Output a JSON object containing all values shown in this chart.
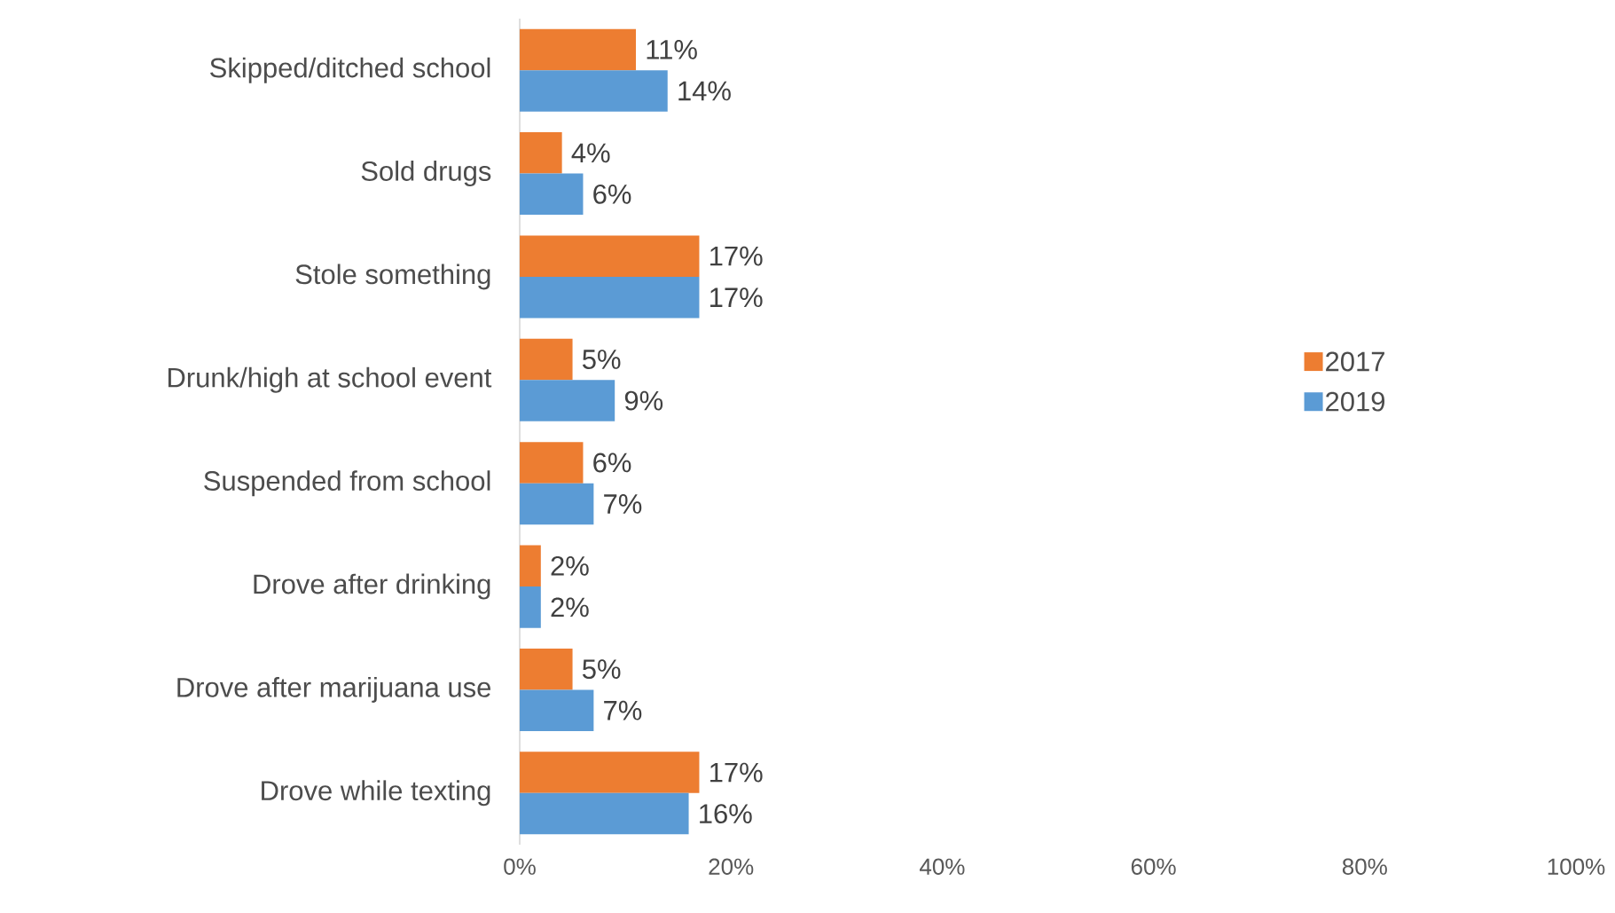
{
  "chart_data": {
    "type": "bar",
    "orientation": "horizontal",
    "categories": [
      "Skipped/ditched school",
      "Sold drugs",
      "Stole something",
      "Drunk/high at school event",
      "Suspended from school",
      "Drove after drinking",
      "Drove after marijuana use",
      "Drove while texting"
    ],
    "series": [
      {
        "name": "2017",
        "color": "#ed7d31",
        "values": [
          11,
          4,
          17,
          5,
          6,
          2,
          5,
          17
        ],
        "value_labels": [
          "11%",
          "4%",
          "17%",
          "5%",
          "6%",
          "2%",
          "5%",
          "17%"
        ]
      },
      {
        "name": "2019",
        "color": "#5b9bd5",
        "values": [
          14,
          6,
          17,
          9,
          7,
          2,
          7,
          16
        ],
        "value_labels": [
          "14%",
          "6%",
          "17%",
          "9%",
          "7%",
          "2%",
          "7%",
          "16%"
        ]
      }
    ],
    "xlim": [
      0,
      100
    ],
    "xticks": [
      {
        "value": 0,
        "label": "0%"
      },
      {
        "value": 20,
        "label": "20%"
      },
      {
        "value": 40,
        "label": "40%"
      },
      {
        "value": 60,
        "label": "60%"
      },
      {
        "value": 80,
        "label": "80%"
      },
      {
        "value": 100,
        "label": "100%"
      }
    ],
    "legend": "right"
  }
}
